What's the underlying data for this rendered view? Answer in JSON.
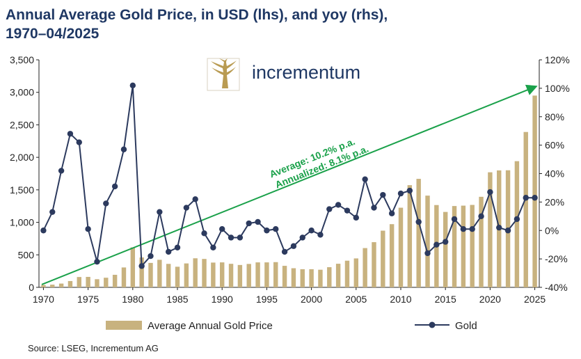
{
  "title_line1": "Annual Average Gold Price, in USD (lhs), and yoy (rhs),",
  "title_line2": "1970–04/2025",
  "logo_text": "incrementum",
  "source": "Source: LSEG, Incrementum AG",
  "colors": {
    "title": "#1f3864",
    "bar": "#c8b27f",
    "line": "#2c3a5e",
    "arrow": "#1aa14a",
    "axis": "#222222"
  },
  "chart_data": {
    "type": "bar",
    "title": "Annual Average Gold Price, in USD (lhs), and yoy (rhs), 1970–04/2025",
    "x_tick_labels": [
      "1970",
      "1975",
      "1980",
      "1985",
      "1990",
      "1995",
      "2000",
      "2005",
      "2010",
      "2015",
      "2020",
      "2025"
    ],
    "y_left": {
      "min": 0,
      "max": 3500,
      "ticks": [
        "0",
        "500",
        "1,000",
        "1,500",
        "2,000",
        "2,500",
        "3,000",
        "3,500"
      ]
    },
    "y_right": {
      "min": -40,
      "max": 120,
      "ticks": [
        "-40%",
        "-20%",
        "0%",
        "20%",
        "40%",
        "60%",
        "80%",
        "100%",
        "120%"
      ]
    },
    "legend": {
      "bar_label": "Average Annual Gold Price",
      "line_label": "Gold",
      "placement": "bottom"
    },
    "annotation": {
      "line1": "Average: 10.2% p.a.",
      "line2": "Annualized: 8.1% p.a."
    },
    "years": [
      1970,
      1971,
      1972,
      1973,
      1974,
      1975,
      1976,
      1977,
      1978,
      1979,
      1980,
      1981,
      1982,
      1983,
      1984,
      1985,
      1986,
      1987,
      1988,
      1989,
      1990,
      1991,
      1992,
      1993,
      1994,
      1995,
      1996,
      1997,
      1998,
      1999,
      2000,
      2001,
      2002,
      2003,
      2004,
      2005,
      2006,
      2007,
      2008,
      2009,
      2010,
      2011,
      2012,
      2013,
      2014,
      2015,
      2016,
      2017,
      2018,
      2019,
      2020,
      2021,
      2022,
      2023,
      2024,
      2025
    ],
    "series": [
      {
        "name": "Average Annual Gold Price",
        "axis": "left",
        "kind": "bar",
        "values": [
          36,
          41,
          58,
          97,
          159,
          161,
          125,
          148,
          193,
          306,
          615,
          460,
          376,
          424,
          361,
          317,
          368,
          447,
          437,
          381,
          384,
          362,
          344,
          360,
          384,
          384,
          388,
          331,
          294,
          279,
          279,
          271,
          310,
          363,
          410,
          445,
          604,
          695,
          872,
          972,
          1225,
          1572,
          1669,
          1411,
          1266,
          1160,
          1251,
          1257,
          1268,
          1393,
          1770,
          1799,
          1801,
          1941,
          2390,
          2950
        ]
      },
      {
        "name": "Gold",
        "axis": "right",
        "kind": "line",
        "values": [
          0,
          13,
          42,
          68,
          62,
          1,
          -22,
          19,
          31,
          57,
          102,
          -25,
          -18,
          13,
          -15,
          -12,
          16,
          22,
          -2,
          -12,
          1,
          -5,
          -5,
          5,
          6,
          0,
          1,
          -15,
          -11,
          -5,
          0,
          -3,
          15,
          18,
          14,
          9,
          36,
          16,
          25,
          12,
          26,
          28,
          6,
          -16,
          -10,
          -8,
          8,
          1,
          1,
          10,
          27,
          2,
          0,
          8,
          23,
          23
        ]
      }
    ]
  }
}
